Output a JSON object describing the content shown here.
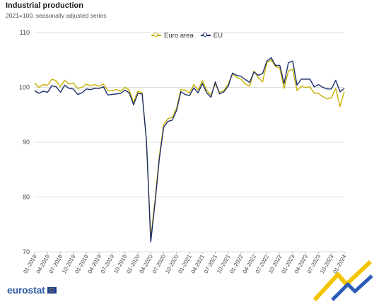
{
  "header": {
    "title": "Industrial production",
    "subtitle": "2021=100, seasonally adjusted series"
  },
  "brand": {
    "logo_text": "eurostat"
  },
  "colors": {
    "euro_area": "#c5b300",
    "eu": "#1c2d6b",
    "grid": "#dddddd",
    "axis_text": "#444444"
  },
  "chart_data": {
    "type": "line",
    "title": "Industrial production",
    "subtitle": "2021=100, seasonally adjusted series",
    "ylim": [
      70,
      110
    ],
    "yticks": [
      70,
      80,
      90,
      100,
      110
    ],
    "grid": true,
    "legend_position": "top-center",
    "x": [
      "01-2018",
      "02-2018",
      "03-2018",
      "04-2018",
      "05-2018",
      "06-2018",
      "07-2018",
      "08-2018",
      "09-2018",
      "10-2018",
      "11-2018",
      "12-2018",
      "01-2019",
      "02-2019",
      "03-2019",
      "04-2019",
      "05-2019",
      "06-2019",
      "07-2019",
      "08-2019",
      "09-2019",
      "10-2019",
      "11-2019",
      "12-2019",
      "01-2020",
      "02-2020",
      "03-2020",
      "04-2020",
      "05-2020",
      "06-2020",
      "07-2020",
      "08-2020",
      "09-2020",
      "10-2020",
      "11-2020",
      "12-2020",
      "01-2021",
      "02-2021",
      "03-2021",
      "04-2021",
      "05-2021",
      "06-2021",
      "07-2021",
      "08-2021",
      "09-2021",
      "10-2021",
      "11-2021",
      "12-2021",
      "01-2022",
      "02-2022",
      "03-2022",
      "04-2022",
      "05-2022",
      "06-2022",
      "07-2022",
      "08-2022",
      "09-2022",
      "10-2022",
      "11-2022",
      "12-2022",
      "01-2023",
      "02-2023",
      "03-2023",
      "04-2023",
      "05-2023",
      "06-2023",
      "07-2023",
      "08-2023",
      "09-2023",
      "10-2023",
      "11-2023",
      "12-2023",
      "01-2024"
    ],
    "xtick_labels": [
      "01-2018",
      "04-2018",
      "07-2018",
      "10-2018",
      "01-2019",
      "04-2019",
      "07-2019",
      "10-2019",
      "01-2020",
      "04-2020",
      "07-2020",
      "10-2020",
      "01-2021",
      "04-2021",
      "07-2021",
      "10-2021",
      "01-2022",
      "04-2022",
      "07-2022",
      "10-2022",
      "01-2023",
      "04-2023",
      "07-2023",
      "10-2023",
      "01-2024"
    ],
    "series": [
      {
        "name": "Euro area",
        "color": "#c5b300",
        "values": [
          100.8,
          100.0,
          100.5,
          100.4,
          101.5,
          101.2,
          100.1,
          101.3,
          100.6,
          100.8,
          99.8,
          100.0,
          100.6,
          100.3,
          100.5,
          100.2,
          100.6,
          99.4,
          99.4,
          99.6,
          99.3,
          100.0,
          99.5,
          97.2,
          99.3,
          99.0,
          90.0,
          72.5,
          79.5,
          87.5,
          93.2,
          94.3,
          94.5,
          96.2,
          99.6,
          99.5,
          99.0,
          100.5,
          99.5,
          101.2,
          99.5,
          98.6,
          100.6,
          99.1,
          99.4,
          100.6,
          102.5,
          101.8,
          101.5,
          100.6,
          100.2,
          103.0,
          101.8,
          101.0,
          104.5,
          105.0,
          103.8,
          103.5,
          99.8,
          103.0,
          103.3,
          99.4,
          100.2,
          100.0,
          100.1,
          98.9,
          98.9,
          98.3,
          97.9,
          98.1,
          99.8,
          96.5,
          99.2
        ]
      },
      {
        "name": "EU",
        "color": "#1c2d6b",
        "values": [
          99.4,
          98.9,
          99.3,
          99.1,
          100.3,
          100.1,
          99.1,
          100.4,
          99.8,
          99.7,
          98.7,
          99.0,
          99.7,
          99.6,
          99.8,
          99.8,
          100.1,
          98.6,
          98.7,
          98.8,
          98.9,
          99.5,
          99.0,
          96.8,
          98.9,
          98.8,
          90.3,
          71.8,
          79.0,
          87.0,
          92.7,
          93.8,
          94.0,
          95.8,
          99.2,
          98.7,
          98.5,
          99.9,
          99.0,
          100.7,
          99.0,
          98.2,
          101.0,
          98.8,
          99.2,
          100.2,
          102.6,
          102.2,
          102.0,
          101.4,
          100.9,
          102.8,
          102.2,
          102.5,
          104.8,
          105.4,
          104.0,
          104.0,
          100.7,
          104.5,
          104.8,
          100.4,
          101.5,
          101.5,
          101.5,
          100.1,
          100.5,
          100.0,
          99.7,
          99.7,
          101.3,
          99.2,
          99.8
        ]
      }
    ]
  },
  "legend": {
    "items": [
      "Euro area",
      "EU"
    ]
  }
}
